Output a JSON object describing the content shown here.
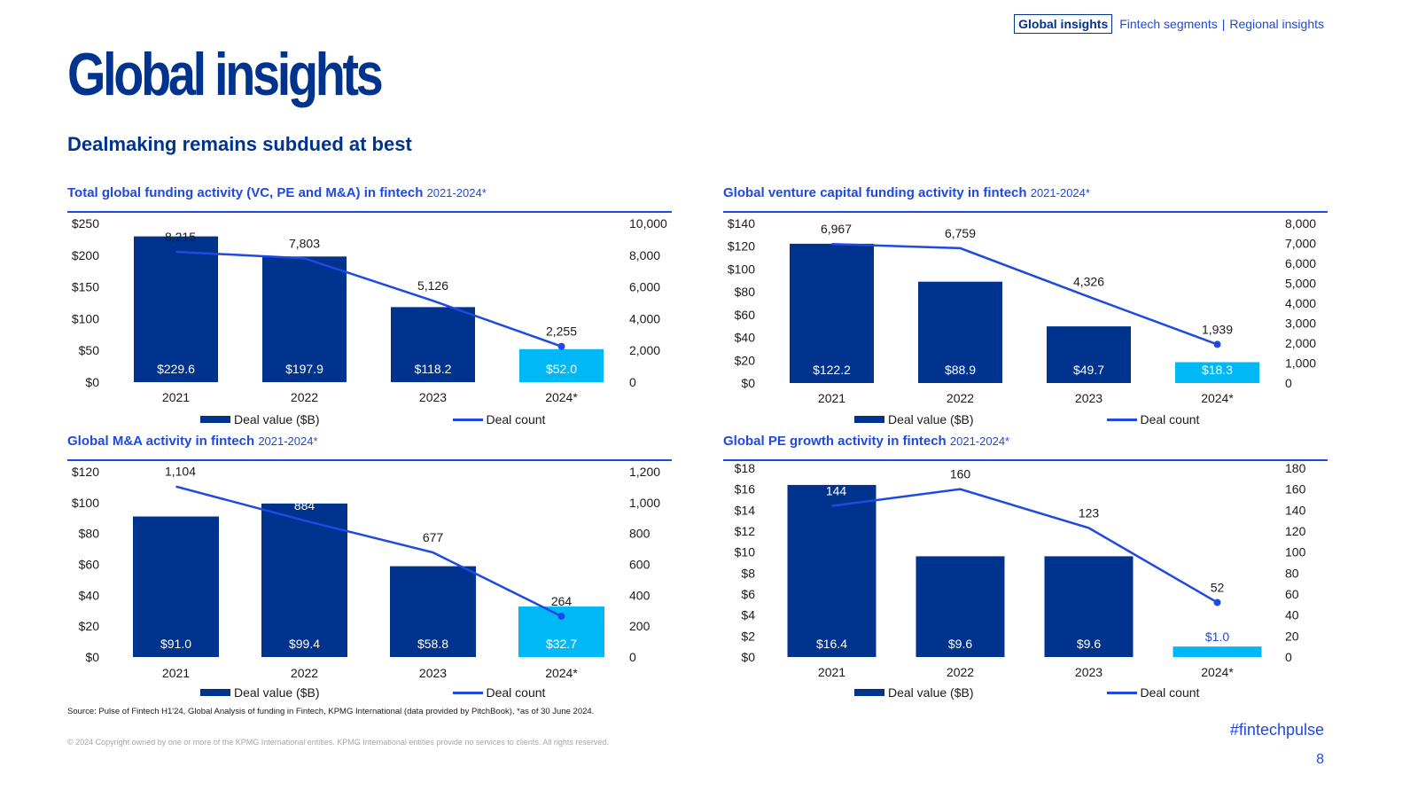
{
  "nav": {
    "active": "Global insights",
    "links": [
      "Fintech segments",
      "Regional insights"
    ],
    "separator": "|"
  },
  "page_title": "Global insights",
  "subtitle": "Dealmaking remains subdued at best",
  "legend": {
    "bar_label": "Deal value ($B)",
    "line_label": "Deal count"
  },
  "colors": {
    "bar": "#00338d",
    "bar_highlight": "#00b8f5",
    "line": "#1e49e2",
    "title": "#00338d",
    "accent": "#1e49e2"
  },
  "source": "Source: Pulse of Fintech H1'24, Global Analysis of funding in Fintech, KPMG International (data provided by PitchBook), *as of 30 June 2024.",
  "copyright": "© 2024 Copyright owned by one or more of the KPMG International entities. KPMG International entities provide no services to clients. All rights reserved.",
  "hashtag": "#fintechpulse",
  "page_number": "8",
  "chart_data": [
    {
      "type": "bar",
      "title": "Total global funding activity (VC, PE and M&A) in fintech",
      "title_suffix": "2021-2024*",
      "categories": [
        "2021",
        "2022",
        "2023",
        "2024*"
      ],
      "series": [
        {
          "name": "Deal value ($B)",
          "type": "bar",
          "axis": "left",
          "values": [
            229.6,
            197.9,
            118.2,
            52.0
          ],
          "labels": [
            "$229.6",
            "$197.9",
            "$118.2",
            "$52.0"
          ]
        },
        {
          "name": "Deal count",
          "type": "line",
          "axis": "right",
          "values": [
            8215,
            7803,
            5126,
            2255
          ],
          "labels": [
            "8,215",
            "7,803",
            "5,126",
            "2,255"
          ]
        }
      ],
      "ylim_left": [
        0,
        250
      ],
      "ylim_right": [
        0,
        10000
      ],
      "yticks_left": [
        "$0",
        "$50",
        "$100",
        "$150",
        "$200",
        "$250"
      ],
      "yticks_right": [
        "0",
        "2,000",
        "4,000",
        "6,000",
        "8,000",
        "10,000"
      ],
      "legend_position": "bottom"
    },
    {
      "type": "bar",
      "title": "Global venture capital funding activity in fintech",
      "title_suffix": "2021-2024*",
      "categories": [
        "2021",
        "2022",
        "2023",
        "2024*"
      ],
      "series": [
        {
          "name": "Deal value ($B)",
          "type": "bar",
          "axis": "left",
          "values": [
            122.2,
            88.9,
            49.7,
            18.3
          ],
          "labels": [
            "$122.2",
            "$88.9",
            "$49.7",
            "$18.3"
          ]
        },
        {
          "name": "Deal count",
          "type": "line",
          "axis": "right",
          "values": [
            6967,
            6759,
            4326,
            1939
          ],
          "labels": [
            "6,967",
            "6,759",
            "4,326",
            "1,939"
          ]
        }
      ],
      "ylim_left": [
        0,
        140
      ],
      "ylim_right": [
        0,
        8000
      ],
      "yticks_left": [
        "$0",
        "$20",
        "$40",
        "$60",
        "$80",
        "$100",
        "$120",
        "$140"
      ],
      "yticks_right": [
        "0",
        "1,000",
        "2,000",
        "3,000",
        "4,000",
        "5,000",
        "6,000",
        "7,000",
        "8,000"
      ],
      "legend_position": "bottom"
    },
    {
      "type": "bar",
      "title": "Global M&A activity in fintech",
      "title_suffix": "2021-2024*",
      "categories": [
        "2021",
        "2022",
        "2023",
        "2024*"
      ],
      "series": [
        {
          "name": "Deal value ($B)",
          "type": "bar",
          "axis": "left",
          "values": [
            91.0,
            99.4,
            58.8,
            32.7
          ],
          "labels": [
            "$91.0",
            "$99.4",
            "$58.8",
            "$32.7"
          ]
        },
        {
          "name": "Deal count",
          "type": "line",
          "axis": "right",
          "values": [
            1104,
            884,
            677,
            264
          ],
          "labels": [
            "1,104",
            "884",
            "677",
            "264"
          ]
        }
      ],
      "ylim_left": [
        0,
        120
      ],
      "ylim_right": [
        0,
        1200
      ],
      "yticks_left": [
        "$0",
        "$20",
        "$40",
        "$60",
        "$80",
        "$100",
        "$120"
      ],
      "yticks_right": [
        "0",
        "200",
        "400",
        "600",
        "800",
        "1,000",
        "1,200"
      ],
      "legend_position": "bottom"
    },
    {
      "type": "bar",
      "title": "Global PE growth activity in fintech",
      "title_suffix": "2021-2024*",
      "categories": [
        "2021",
        "2022",
        "2023",
        "2024*"
      ],
      "series": [
        {
          "name": "Deal value ($B)",
          "type": "bar",
          "axis": "left",
          "values": [
            16.4,
            9.6,
            9.6,
            1.0
          ],
          "labels": [
            "$16.4",
            "$9.6",
            "$9.6",
            "$1.0"
          ]
        },
        {
          "name": "Deal count",
          "type": "line",
          "axis": "right",
          "values": [
            144,
            160,
            123,
            52
          ],
          "labels": [
            "144",
            "160",
            "123",
            "52"
          ]
        }
      ],
      "ylim_left": [
        0,
        18
      ],
      "ylim_right": [
        0,
        180
      ],
      "yticks_left": [
        "$0",
        "$2",
        "$4",
        "$6",
        "$8",
        "$10",
        "$12",
        "$14",
        "$16",
        "$18"
      ],
      "yticks_right": [
        "0",
        "20",
        "40",
        "60",
        "80",
        "100",
        "120",
        "140",
        "160",
        "180"
      ],
      "legend_position": "bottom"
    }
  ]
}
